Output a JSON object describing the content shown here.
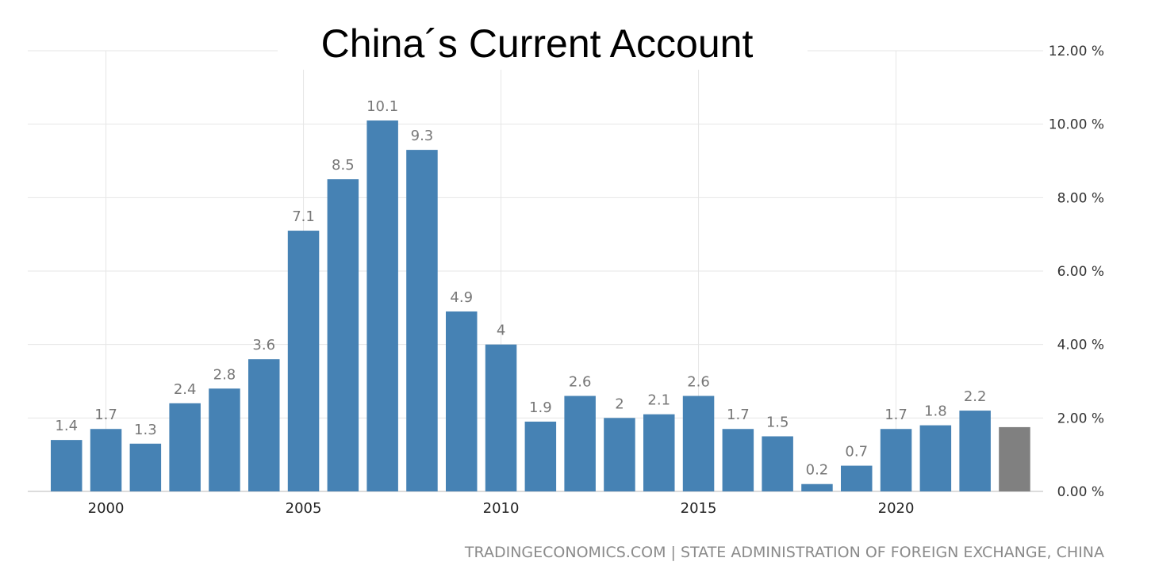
{
  "chart_data": {
    "type": "bar",
    "title": "China´s Current Account",
    "source": "TRADINGECONOMICS.COM | STATE ADMINISTRATION OF FOREIGN EXCHANGE, CHINA",
    "x": [
      1999,
      2000,
      2001,
      2002,
      2003,
      2004,
      2005,
      2006,
      2007,
      2008,
      2009,
      2010,
      2011,
      2012,
      2013,
      2014,
      2015,
      2016,
      2017,
      2018,
      2019,
      2020,
      2021,
      2022,
      2023
    ],
    "values": [
      1.4,
      1.7,
      1.3,
      2.4,
      2.8,
      3.6,
      7.1,
      8.5,
      10.1,
      9.3,
      4.9,
      4,
      1.9,
      2.6,
      2,
      2.1,
      2.6,
      1.7,
      1.5,
      0.2,
      0.7,
      1.7,
      1.8,
      2.2,
      1.75
    ],
    "data_labels": [
      "1.4",
      "1.7",
      "1.3",
      "2.4",
      "2.8",
      "3.6",
      "7.1",
      "8.5",
      "10.1",
      "9.3",
      "4.9",
      "4",
      "1.9",
      "2.6",
      "2",
      "2.1",
      "2.6",
      "1.7",
      "1.5",
      "0.2",
      "0.7",
      "1.7",
      "1.8",
      "2.2",
      ""
    ],
    "xticks": [
      2000,
      2005,
      2010,
      2015,
      2020
    ],
    "xtick_labels": [
      "2000",
      "2005",
      "2010",
      "2015",
      "2020"
    ],
    "yticks": [
      0,
      2,
      4,
      6,
      8,
      10,
      12
    ],
    "ytick_labels": [
      "0.00 %",
      "2.00 %",
      "4.00 %",
      "6.00 %",
      "8.00 %",
      "10.00 %",
      "12.00 %"
    ],
    "ylim": [
      0,
      12
    ],
    "xlabel": "",
    "ylabel": "",
    "grid": true,
    "yaxis_position": "right",
    "colors": {
      "bar": "#4682b4",
      "forecast_bar": "#808080"
    }
  }
}
